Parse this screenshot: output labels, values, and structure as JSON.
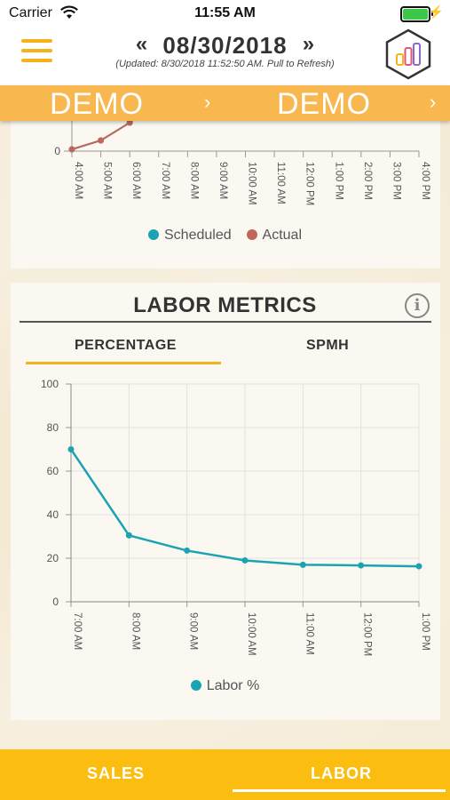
{
  "status_bar": {
    "carrier": "Carrier",
    "time": "11:55 AM",
    "battery_level": 1.0
  },
  "header": {
    "prev_icon": "double-chevron-left",
    "next_icon": "double-chevron-right",
    "date": "08/30/2018",
    "updated": "(Updated: 8/30/2018 11:52:50 AM. Pull to Refresh)",
    "menu_icon": "hamburger-menu",
    "logo_icon": "hexagon-bar-chart-logo"
  },
  "demo_band": {
    "left": "DEMO",
    "right": "DEMO",
    "chevron": "›"
  },
  "sales_chart": {
    "legend": [
      {
        "name": "Scheduled",
        "color": "#1aa3b3"
      },
      {
        "name": "Actual",
        "color": "#c0675c"
      }
    ]
  },
  "labor_metrics": {
    "title": "LABOR METRICS",
    "info_icon": "info",
    "info_glyph": "i",
    "tabs": [
      {
        "label": "PERCENTAGE",
        "active": true
      },
      {
        "label": "SPMH",
        "active": false
      }
    ],
    "legend": {
      "name": "Labor %",
      "color": "#1aa3b3"
    }
  },
  "chart_data": [
    {
      "type": "line",
      "x": [
        "4:00 AM",
        "5:00 AM",
        "6:00 AM",
        "7:00 AM",
        "8:00 AM",
        "9:00 AM",
        "10:00 AM",
        "11:00 AM",
        "12:00 PM",
        "1:00 PM",
        "2:00 PM",
        "3:00 PM",
        "4:00 PM"
      ],
      "ytick": "0",
      "series": [
        {
          "name": "Scheduled",
          "color": "#1aa3b3",
          "values": [
            0.5,
            3,
            8,
            15,
            null,
            null,
            null,
            null,
            null,
            null,
            null,
            null,
            null
          ]
        },
        {
          "name": "Actual",
          "color": "#c0675c",
          "values": [
            0.5,
            3,
            8,
            15,
            null,
            null,
            null,
            null,
            null,
            null,
            null,
            null,
            null
          ]
        }
      ],
      "ylim": [
        0,
        40
      ],
      "legend_position": "bottom"
    },
    {
      "type": "line",
      "x": [
        "7:00 AM",
        "8:00 AM",
        "9:00 AM",
        "10:00 AM",
        "11:00 AM",
        "12:00 PM",
        "1:00 PM"
      ],
      "yticks": [
        "0",
        "20",
        "40",
        "60",
        "80",
        "100"
      ],
      "ylim": [
        0,
        100
      ],
      "series": [
        {
          "name": "Labor %",
          "color": "#1aa3b3",
          "values": [
            70,
            30.5,
            23.5,
            19,
            17,
            16.7,
            16.3
          ]
        }
      ],
      "grid": true,
      "legend_position": "bottom"
    }
  ],
  "bottom_nav": {
    "sales": "SALES",
    "labor": "LABOR",
    "active": "labor"
  }
}
